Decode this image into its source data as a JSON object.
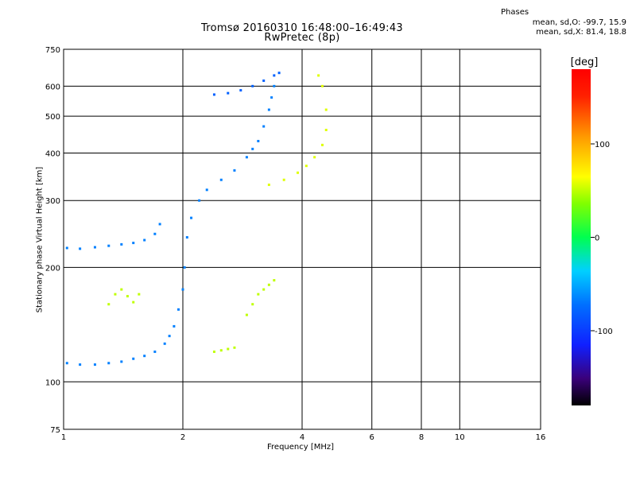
{
  "chart_data": {
    "type": "scatter",
    "title": "Tromsø 20160310 16:48:00–16:49:43",
    "subtitle": "RwPretec (8p)",
    "xlabel": "Frequency [MHz]",
    "ylabel": "Stationary phase Virtual Height [km]",
    "x_scale": "log",
    "y_scale": "log",
    "xlim": [
      1,
      16
    ],
    "ylim": [
      75,
      750
    ],
    "x_ticks": [
      1,
      2,
      4,
      6,
      8,
      10,
      16
    ],
    "y_ticks": [
      75,
      100,
      200,
      300,
      400,
      500,
      600,
      750
    ],
    "grid": true,
    "colorbar": {
      "label": "[deg]",
      "range": [
        -180,
        180
      ],
      "ticks": [
        -100,
        0,
        100
      ]
    },
    "stats": {
      "heading": "Phases",
      "line_o": "mean, sd,O: -99.7, 15.9",
      "line_x": "mean, sd,X: 81.4, 18.8"
    },
    "series": [
      {
        "trace": "F-region O-mode low-frequency trace",
        "points": [
          [
            1.02,
            112
          ],
          [
            1.1,
            111
          ],
          [
            1.2,
            111
          ],
          [
            1.3,
            112
          ],
          [
            1.4,
            113
          ],
          [
            1.5,
            115
          ],
          [
            1.6,
            117
          ],
          [
            1.7,
            120
          ],
          [
            1.8,
            126
          ],
          [
            1.85,
            132
          ],
          [
            1.9,
            140
          ],
          [
            1.95,
            155
          ],
          [
            2.0,
            175
          ],
          [
            2.02,
            200
          ],
          [
            2.05,
            240
          ],
          [
            2.1,
            270
          ],
          [
            2.2,
            300
          ],
          [
            2.3,
            320
          ],
          [
            2.5,
            340
          ],
          [
            2.7,
            360
          ],
          [
            2.9,
            390
          ],
          [
            3.0,
            410
          ],
          [
            3.1,
            430
          ],
          [
            3.2,
            470
          ],
          [
            3.3,
            520
          ],
          [
            3.35,
            560
          ],
          [
            3.4,
            600
          ]
        ],
        "phase": -100
      },
      {
        "trace": "Lower F trace near 230 km",
        "points": [
          [
            1.02,
            225
          ],
          [
            1.1,
            224
          ],
          [
            1.2,
            226
          ],
          [
            1.3,
            228
          ],
          [
            1.4,
            230
          ],
          [
            1.5,
            232
          ],
          [
            1.6,
            236
          ],
          [
            1.7,
            245
          ],
          [
            1.75,
            260
          ]
        ],
        "phase": -100
      },
      {
        "trace": "Upper F trace near 580 km",
        "points": [
          [
            2.4,
            570
          ],
          [
            2.6,
            575
          ],
          [
            2.8,
            585
          ],
          [
            3.0,
            600
          ],
          [
            3.2,
            620
          ],
          [
            3.4,
            640
          ],
          [
            3.5,
            650
          ]
        ],
        "phase": -110
      },
      {
        "trace": "Upper X-mode trace",
        "points": [
          [
            3.3,
            330
          ],
          [
            3.6,
            340
          ],
          [
            3.9,
            355
          ],
          [
            4.1,
            370
          ],
          [
            4.3,
            390
          ],
          [
            4.5,
            420
          ],
          [
            4.6,
            460
          ],
          [
            4.6,
            520
          ],
          [
            4.5,
            600
          ],
          [
            4.4,
            640
          ]
        ],
        "phase": 90
      },
      {
        "trace": "Lower X-mode cluster near 170 km",
        "points": [
          [
            1.3,
            160
          ],
          [
            1.35,
            170
          ],
          [
            1.4,
            175
          ],
          [
            1.45,
            168
          ],
          [
            1.5,
            162
          ],
          [
            1.55,
            170
          ],
          [
            2.9,
            150
          ],
          [
            3.0,
            160
          ],
          [
            3.1,
            170
          ],
          [
            3.2,
            175
          ],
          [
            3.3,
            180
          ],
          [
            3.4,
            185
          ],
          [
            2.4,
            120
          ],
          [
            2.5,
            121
          ],
          [
            2.6,
            122
          ],
          [
            2.7,
            123
          ]
        ],
        "phase": 80
      }
    ]
  }
}
